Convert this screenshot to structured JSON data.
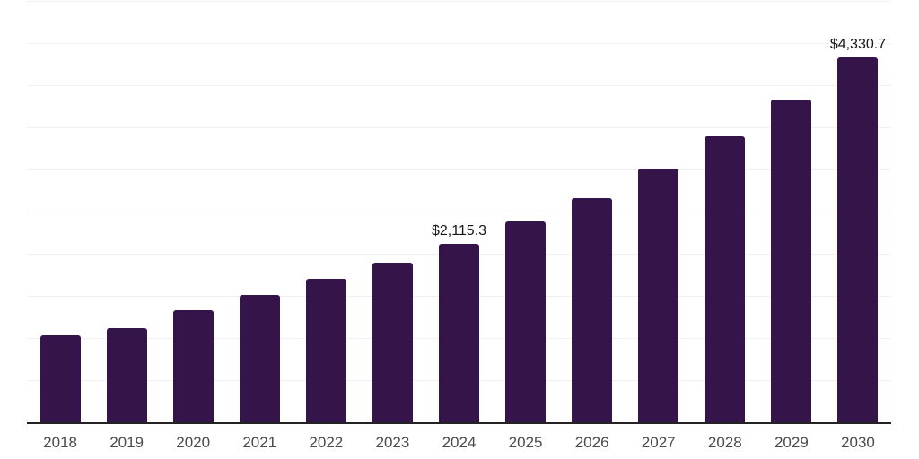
{
  "chart_data": {
    "type": "bar",
    "title": "",
    "xlabel": "",
    "ylabel": "",
    "categories": [
      "2018",
      "2019",
      "2020",
      "2021",
      "2022",
      "2023",
      "2024",
      "2025",
      "2026",
      "2027",
      "2028",
      "2029",
      "2030"
    ],
    "values": [
      1034,
      1116,
      1331,
      1512,
      1700,
      1897,
      2115.3,
      2385,
      2661,
      3008,
      3393,
      3825,
      4330.7
    ],
    "annotations": [
      {
        "category": "2024",
        "label": "$2,115.3"
      },
      {
        "category": "2030",
        "label": "$4,330.7"
      }
    ],
    "ylim": [
      0,
      5000
    ],
    "grid": true,
    "grid_interval": 500,
    "legend": "none",
    "colors": {
      "bar": "#351449",
      "gridline": "#f0f0f0",
      "axis_line": "#222222",
      "tick_label": "#4a4a4a",
      "data_label": "#161616",
      "background": "#ffffff"
    }
  }
}
